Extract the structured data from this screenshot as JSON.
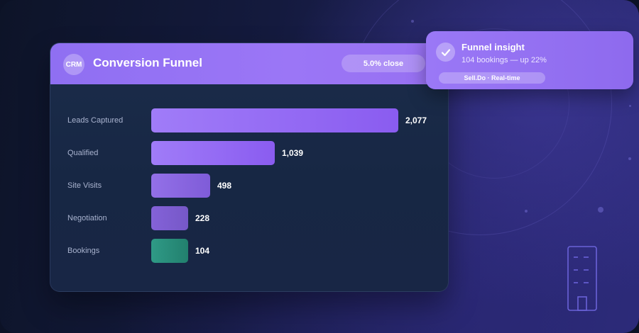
{
  "card": {
    "badge": "CRM",
    "title": "Conversion Funnel",
    "close_rate": "5.0% close"
  },
  "funnel": {
    "max": 2077,
    "rows": [
      {
        "label": "Leads Captured",
        "value": 2077,
        "value_text": "2,077",
        "color_start": "#a07cf8",
        "color_end": "#8a5cf0"
      },
      {
        "label": "Qualified",
        "value": 1039,
        "value_text": "1,039",
        "color_start": "#a07cf8",
        "color_end": "#8a5cf0"
      },
      {
        "label": "Site Visits",
        "value": 498,
        "value_text": "498",
        "color_start": "#9370e8",
        "color_end": "#7f5cd8"
      },
      {
        "label": "Negotiation",
        "value": 228,
        "value_text": "228",
        "color_start": "#8462d8",
        "color_end": "#7658c8"
      },
      {
        "label": "Bookings",
        "value": 104,
        "value_text": "104",
        "color_start": "#2f9a86",
        "color_end": "#22806e"
      }
    ]
  },
  "insight": {
    "icon": "check-icon",
    "title": "Funnel insight",
    "subtitle": "104 bookings — up 22%",
    "tag": "Sell.Do · Real-time"
  },
  "decor": {
    "icon": "building-icon"
  }
}
